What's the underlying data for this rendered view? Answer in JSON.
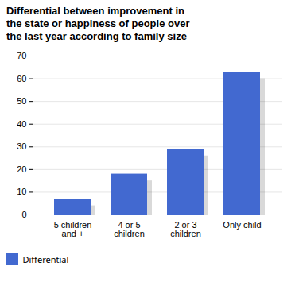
{
  "chart_data": {
    "type": "bar",
    "title": "Differential between improvement in\nthe state or happiness of people over\nthe last year according to family size",
    "categories": [
      "5 children\nand +",
      "4 or 5\nchildren",
      "2 or 3\nchildren",
      "Only child"
    ],
    "series": [
      {
        "name": "Differential",
        "values": [
          7,
          18,
          29,
          63
        ]
      }
    ],
    "shadow_values": [
      4,
      15,
      26,
      60
    ],
    "ylim": [
      0,
      70
    ],
    "yticks": [
      0,
      10,
      20,
      30,
      40,
      50,
      60,
      70
    ],
    "grid": true,
    "legend": "bottom-left"
  }
}
